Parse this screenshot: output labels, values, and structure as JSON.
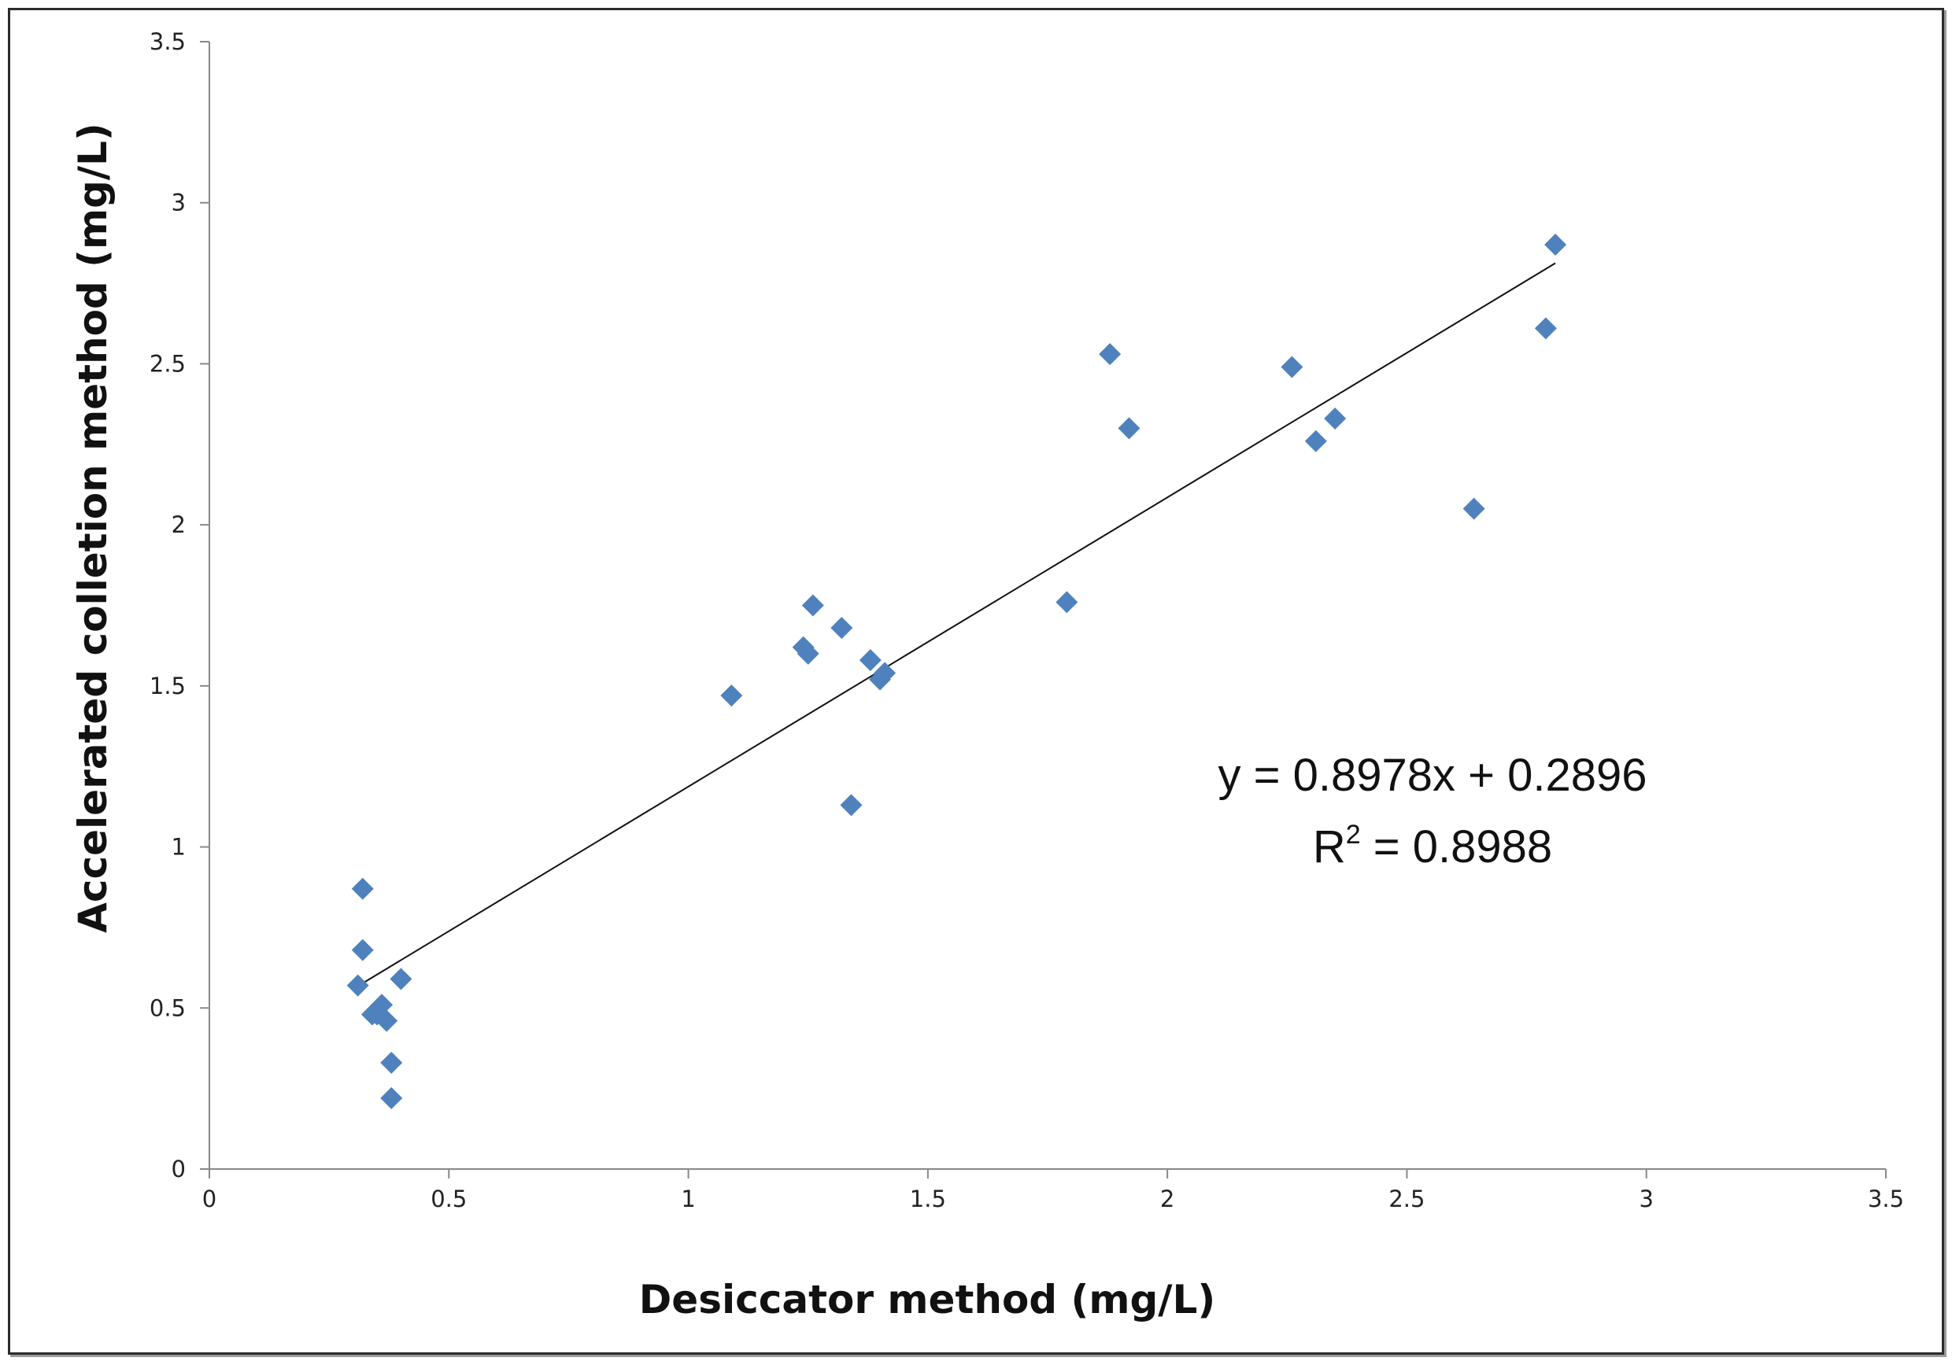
{
  "chart_data": {
    "type": "scatter",
    "title": "",
    "xlabel": "Desiccator method (mg/L)",
    "ylabel": "Accelerated colletion method (mg/L)",
    "xlim": [
      0,
      3.5
    ],
    "ylim": [
      0,
      3.5
    ],
    "x_ticks": [
      "0",
      "0.5",
      "1",
      "1.5",
      "2",
      "2.5",
      "3",
      "3.5"
    ],
    "y_ticks": [
      "0",
      "0.5",
      "1",
      "1.5",
      "2",
      "2.5",
      "3",
      "3.5"
    ],
    "grid": false,
    "legend": "none",
    "marker": "diamond",
    "marker_color": "#4f81bd",
    "series": [
      {
        "points": [
          [
            0.31,
            0.57
          ],
          [
            0.32,
            0.87
          ],
          [
            0.32,
            0.68
          ],
          [
            0.34,
            0.48
          ],
          [
            0.35,
            0.48
          ],
          [
            0.36,
            0.51
          ],
          [
            0.37,
            0.46
          ],
          [
            0.38,
            0.33
          ],
          [
            0.38,
            0.22
          ],
          [
            0.4,
            0.59
          ],
          [
            1.09,
            1.47
          ],
          [
            1.24,
            1.62
          ],
          [
            1.25,
            1.6
          ],
          [
            1.26,
            1.75
          ],
          [
            1.32,
            1.68
          ],
          [
            1.34,
            1.13
          ],
          [
            1.38,
            1.58
          ],
          [
            1.4,
            1.52
          ],
          [
            1.41,
            1.54
          ],
          [
            1.79,
            1.76
          ],
          [
            1.88,
            2.53
          ],
          [
            1.92,
            2.3
          ],
          [
            2.26,
            2.49
          ],
          [
            2.31,
            2.26
          ],
          [
            2.35,
            2.33
          ],
          [
            2.64,
            2.05
          ],
          [
            2.79,
            2.61
          ],
          [
            2.81,
            2.87
          ]
        ]
      }
    ],
    "trendline": {
      "slope": 0.8978,
      "intercept": 0.2896,
      "x_range": [
        0.31,
        2.81
      ],
      "color": "#111111",
      "equation_text": "y = 0.8978x + 0.2896",
      "r2_label": "R",
      "r2_sup": "2",
      "r2_value_text": " = 0.8988"
    }
  }
}
